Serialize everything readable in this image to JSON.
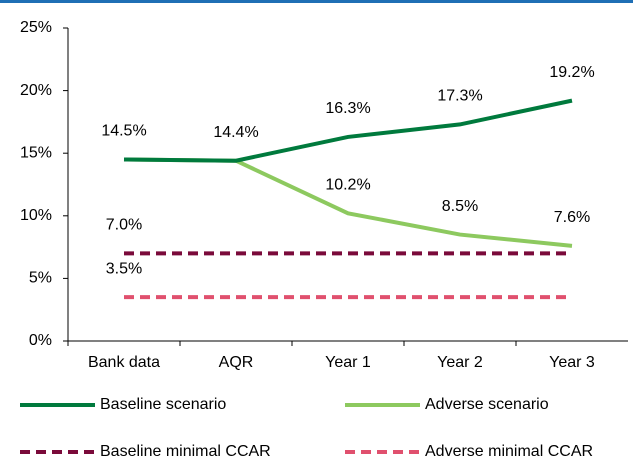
{
  "chart_data": {
    "type": "line",
    "categories": [
      "Bank data",
      "AQR",
      "Year 1",
      "Year 2",
      "Year 3"
    ],
    "series": [
      {
        "name": "Baseline scenario",
        "color": "#007a3d",
        "dash": false,
        "values": [
          14.5,
          14.4,
          16.3,
          17.3,
          19.2
        ],
        "value_labels": [
          "14.5%",
          "14.4%",
          "16.3%",
          "17.3%",
          "19.2%"
        ]
      },
      {
        "name": "Adverse scenario",
        "color": "#8dc95f",
        "dash": false,
        "values": [
          14.5,
          14.4,
          10.2,
          8.5,
          7.6
        ],
        "value_labels": [
          null,
          null,
          "10.2%",
          "8.5%",
          "7.6%"
        ]
      },
      {
        "name": "Baseline minimal CCAR",
        "color": "#7a0a3a",
        "dash": true,
        "values": [
          7.0,
          7.0,
          7.0,
          7.0,
          7.0
        ],
        "value_labels": [
          "7.0%",
          null,
          null,
          null,
          null
        ]
      },
      {
        "name": "Adverse minimal CCAR",
        "color": "#e0506e",
        "dash": true,
        "values": [
          3.5,
          3.5,
          3.5,
          3.5,
          3.5
        ],
        "value_labels": [
          "3.5%",
          null,
          null,
          null,
          null
        ]
      }
    ],
    "ylim": [
      0,
      25
    ],
    "yticks": [
      {
        "value": 0,
        "label": "0%"
      },
      {
        "value": 5,
        "label": "5%"
      },
      {
        "value": 10,
        "label": "10%"
      },
      {
        "value": 15,
        "label": "15%"
      },
      {
        "value": 20,
        "label": "20%"
      },
      {
        "value": 25,
        "label": "25%"
      }
    ]
  }
}
